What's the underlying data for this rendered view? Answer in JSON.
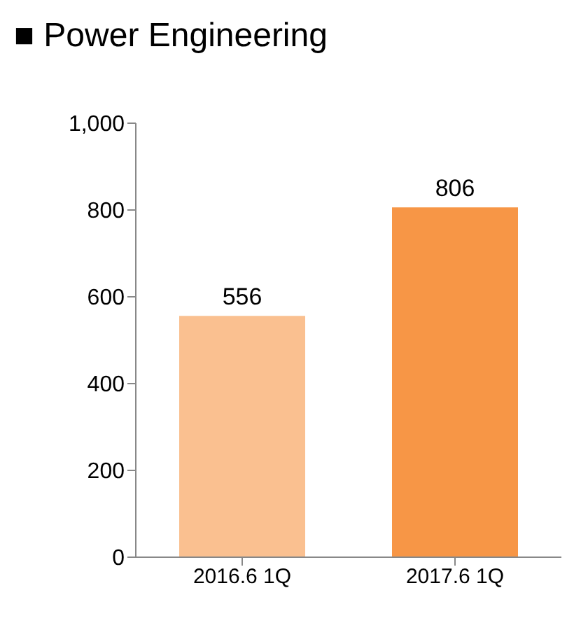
{
  "chart_data": {
    "type": "bar",
    "title": "■ Power Engineering",
    "categories": [
      "2016.6 1Q",
      "2017.6 1Q"
    ],
    "values": [
      556,
      806
    ],
    "colors": [
      "#fac090",
      "#f79646"
    ],
    "ylim": [
      0,
      1000
    ],
    "yticks": [
      0,
      200,
      400,
      600,
      800,
      {
        "value": 1000,
        "label": "1,000"
      }
    ],
    "data_labels": true
  }
}
